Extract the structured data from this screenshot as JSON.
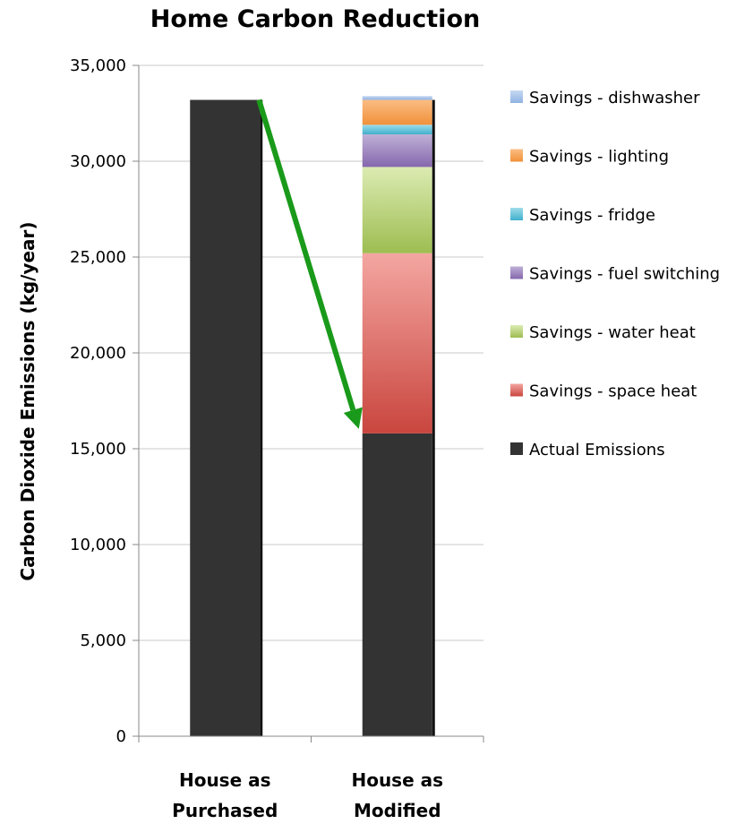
{
  "chart_data": {
    "type": "bar",
    "stacked": true,
    "title": "Home Carbon Reduction",
    "ylabel": "Carbon Dioxide Emissions (kg/year)",
    "xlabel": "",
    "ylim": [
      0,
      35000
    ],
    "yticks": [
      0,
      5000,
      10000,
      15000,
      20000,
      25000,
      30000,
      35000
    ],
    "ytick_labels": [
      "0",
      "5,000",
      "10,000",
      "15,000",
      "20,000",
      "25,000",
      "30,000",
      "35,000"
    ],
    "categories": [
      [
        "House as",
        "Purchased"
      ],
      [
        "House as",
        "Modified"
      ]
    ],
    "grid": "horizontal",
    "legend_position": "right",
    "series": [
      {
        "name": "Actual Emissions",
        "values": [
          33200,
          15800
        ],
        "color": "#333333",
        "color2": "#333333"
      },
      {
        "name": "Savings - space heat",
        "values": [
          0,
          9400
        ],
        "color": "#f4a6a1",
        "color2": "#c9463f"
      },
      {
        "name": "Savings - water heat",
        "values": [
          0,
          4500
        ],
        "color": "#dcebb2",
        "color2": "#9dbd51"
      },
      {
        "name": "Savings - fuel switching",
        "values": [
          0,
          1700
        ],
        "color": "#bfb0d6",
        "color2": "#8567ad"
      },
      {
        "name": "Savings - fridge",
        "values": [
          0,
          500
        ],
        "color": "#9fdcea",
        "color2": "#3fb0cc"
      },
      {
        "name": "Savings - lighting",
        "values": [
          0,
          1300
        ],
        "color": "#fbbd83",
        "color2": "#f0913a"
      },
      {
        "name": "Savings - dishwasher",
        "values": [
          0,
          200
        ],
        "color": "#c6d8f2",
        "color2": "#90b3e3"
      }
    ],
    "legend_order": [
      6,
      5,
      4,
      3,
      2,
      1,
      0
    ],
    "annotation": {
      "type": "arrow",
      "color": "#1a9a1a",
      "from": [
        0,
        33200
      ],
      "to": [
        1,
        15800
      ]
    }
  }
}
